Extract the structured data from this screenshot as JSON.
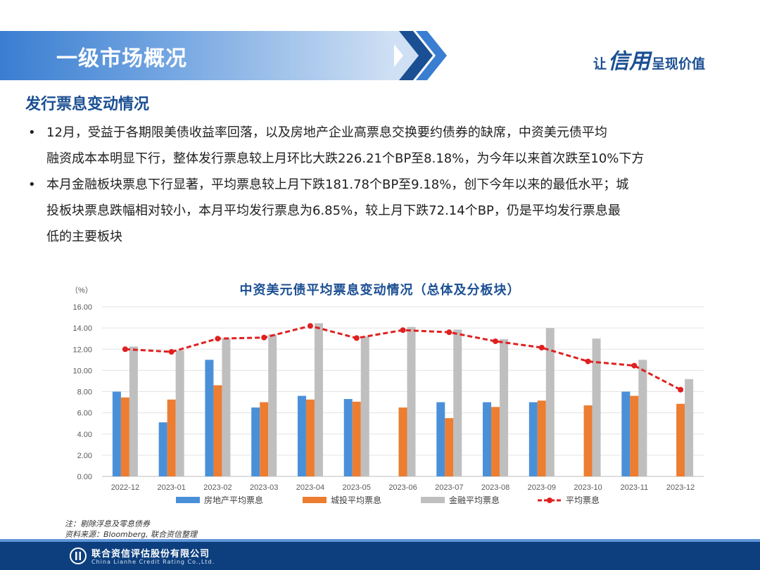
{
  "header": {
    "title": "一级市场概况",
    "slogan_prefix": "让",
    "slogan_emphasis": "信用",
    "slogan_suffix": "呈现价值"
  },
  "section": {
    "title": "发行票息变动情况"
  },
  "bullets": [
    {
      "marker": "•",
      "lines": [
        "12月，受益于各期限美债收益率回落，以及房地产企业高票息交换要约债券的缺席，中资美元债平均",
        "融资成本本明显下行，整体发行票息较上月环比大跌226.21个BP至8.18%，为今年以来首次跌至10%下方"
      ]
    },
    {
      "marker": "•",
      "lines": [
        "本月金融板块票息下行显著，平均票息较上月下跌181.78个BP至9.18%，创下今年以来的最低水平；城",
        "投板块票息跌幅相对较小，本月平均发行票息为6.85%，较上月下跌72.14个BP，仍是平均发行票息最",
        "低的主要板块"
      ]
    }
  ],
  "chart_data": {
    "type": "bar",
    "title": "中资美元债平均票息变动情况（总体及分板块）",
    "ylabel": "（%）",
    "ylim": [
      0,
      16
    ],
    "yticks": [
      "0.00",
      "2.00",
      "4.00",
      "6.00",
      "8.00",
      "10.00",
      "12.00",
      "14.00",
      "16.00"
    ],
    "grid": true,
    "legend_position": "bottom",
    "categories": [
      "2022-12",
      "2023-01",
      "2023-02",
      "2023-03",
      "2023-04",
      "2023-05",
      "2023-06",
      "2023-07",
      "2023-08",
      "2023-09",
      "2023-10",
      "2023-11",
      "2023-12"
    ],
    "series": [
      {
        "name": "房地产平均票息",
        "kind": "bar",
        "color": "#4a90d9",
        "values": [
          8.0,
          5.1,
          11.0,
          6.5,
          7.6,
          7.3,
          null,
          7.0,
          7.0,
          7.0,
          null,
          8.0,
          null
        ]
      },
      {
        "name": "城投平均票息",
        "kind": "bar",
        "color": "#ed7d31",
        "values": [
          7.45,
          7.25,
          8.6,
          7.0,
          7.25,
          7.05,
          6.5,
          5.5,
          6.55,
          7.15,
          6.7,
          7.6,
          6.85
        ]
      },
      {
        "name": "金融平均票息",
        "kind": "bar",
        "color": "#bfbfbf",
        "values": [
          12.25,
          11.9,
          13.05,
          13.4,
          14.45,
          13.2,
          14.1,
          13.85,
          12.95,
          14.0,
          13.0,
          11.0,
          9.18
        ]
      },
      {
        "name": "平均票息",
        "kind": "line",
        "color": "#e02020",
        "values": [
          12.0,
          11.75,
          13.0,
          13.1,
          14.2,
          13.05,
          13.8,
          13.6,
          12.75,
          12.15,
          10.85,
          10.45,
          8.18
        ]
      }
    ]
  },
  "notes": {
    "note": "注：剔除浮息及零息债券",
    "source": "资料来源：Bloomberg, 联合资信整理"
  },
  "footer": {
    "company_cn": "联合资信评估股份有限公司",
    "company_en": "China Lianhe Credit Rating Co.,Ltd."
  }
}
